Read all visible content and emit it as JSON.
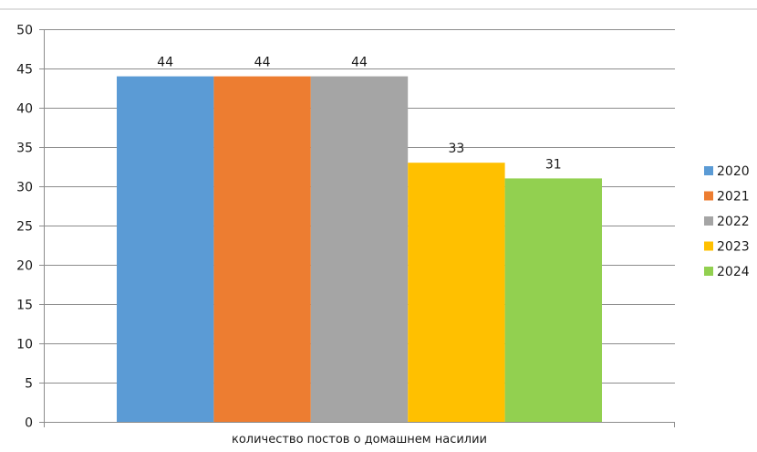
{
  "chart_data": {
    "type": "bar",
    "categories": [
      "количество постов о домашнем насилии"
    ],
    "series": [
      {
        "name": "2020",
        "values": [
          44
        ],
        "color": "#5B9BD5"
      },
      {
        "name": "2021",
        "values": [
          44
        ],
        "color": "#ED7D31"
      },
      {
        "name": "2022",
        "values": [
          44
        ],
        "color": "#A5A5A5"
      },
      {
        "name": "2023",
        "values": [
          33
        ],
        "color": "#FFC000"
      },
      {
        "name": "2024",
        "values": [
          31
        ],
        "color": "#92D050"
      }
    ],
    "ylim": [
      0,
      50
    ],
    "yticks": [
      0,
      5,
      10,
      15,
      20,
      25,
      30,
      35,
      40,
      45,
      50
    ],
    "grid": true,
    "legend_position": "right",
    "data_labels": true
  }
}
